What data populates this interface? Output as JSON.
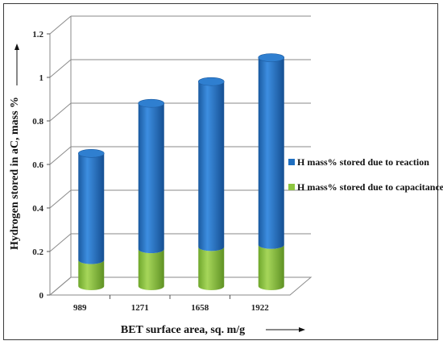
{
  "chart_data": {
    "type": "bar",
    "stacked": true,
    "style": "3d-cylinder",
    "categories": [
      "989",
      "1271",
      "1658",
      "1922"
    ],
    "series": [
      {
        "name": "H mass% stored due to capacitance",
        "color": "#8dc63f",
        "values": [
          0.12,
          0.17,
          0.18,
          0.19
        ]
      },
      {
        "name": "H mass% stored due to reaction",
        "color": "#1f6fc0",
        "values": [
          0.49,
          0.67,
          0.76,
          0.86
        ]
      }
    ],
    "xlabel": "BET surface area, sq. m/g",
    "ylabel": "Hydrogen stored in aC, mass %",
    "yticks": [
      "0",
      "0.2",
      "0.4",
      "0.6",
      "0.8",
      "1",
      "1.2"
    ],
    "ylim": [
      0,
      1.2
    ],
    "grid": true,
    "legend_position": "right"
  }
}
